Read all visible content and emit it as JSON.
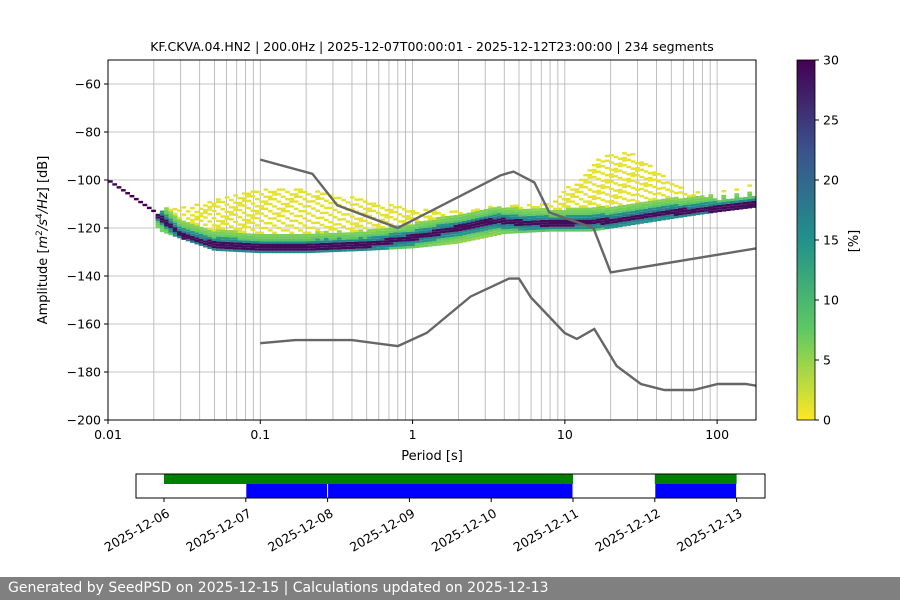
{
  "chart_data": {
    "type": "heatmap",
    "title": "KF.CKVA.04.HN2 | 200.0Hz | 2025-12-07T00:00:01 - 2025-12-12T23:00:00 | 234 segments",
    "xlabel": "Period [s]",
    "ylabel": "Amplitude [m²/s⁴/Hz] [dB]",
    "xscale": "log",
    "xlim": [
      0.01,
      180
    ],
    "ylim": [
      -200,
      -50
    ],
    "x_ticks": [
      0.01,
      0.1,
      1,
      10,
      100
    ],
    "x_tick_labels": [
      "0.01",
      "0.1",
      "1",
      "10",
      "100"
    ],
    "y_ticks": [
      -200,
      -180,
      -160,
      -140,
      -120,
      -100,
      -80,
      -60
    ],
    "y_tick_labels": [
      "−200",
      "−180",
      "−160",
      "−140",
      "−120",
      "−100",
      "−80",
      "−60"
    ],
    "grid": true,
    "colorbar": {
      "label": "[%]",
      "range": [
        0,
        30
      ],
      "ticks": [
        0,
        5,
        10,
        15,
        20,
        25,
        30
      ],
      "colormap": [
        "#fde725",
        "#5ec962",
        "#21918c",
        "#3b528b",
        "#440154"
      ]
    },
    "noise_model_high": {
      "name": "NHNM",
      "color": "#666666",
      "period": [
        0.1,
        0.22,
        0.32,
        0.8,
        3.8,
        4.6,
        6.3,
        7.9,
        15.4,
        20,
        180
      ],
      "db": [
        -91.5,
        -97.4,
        -110.5,
        -120,
        -98,
        -96.5,
        -101,
        -113.5,
        -120,
        -138.5,
        -128.5
      ]
    },
    "noise_model_low": {
      "name": "NLNM",
      "color": "#666666",
      "period": [
        0.1,
        0.17,
        0.4,
        0.8,
        1.24,
        2.4,
        4.3,
        5,
        6,
        10,
        12,
        15.6,
        21.9,
        31.6,
        45,
        70,
        101,
        154,
        180
      ],
      "db": [
        -168,
        -166.7,
        -166.7,
        -169.2,
        -163.7,
        -148.6,
        -141.1,
        -141.1,
        -149,
        -163.8,
        -166.2,
        -162.1,
        -177.5,
        -185,
        -187.5,
        -187.5,
        -185,
        -185,
        -185.7
      ]
    },
    "mode_curve": {
      "period": [
        0.01,
        0.02,
        0.03,
        0.05,
        0.1,
        0.2,
        0.5,
        1,
        2,
        3.5,
        6,
        10,
        20,
        40,
        100,
        180
      ],
      "db": [
        -100,
        -113,
        -123,
        -127,
        -128,
        -128,
        -127,
        -124,
        -120,
        -117,
        -118,
        -118,
        -117,
        -114,
        -112,
        -110
      ]
    },
    "spread_upper": {
      "period": [
        0.02,
        0.05,
        0.1,
        0.2,
        0.5,
        1,
        2,
        4,
        8,
        13,
        16,
        22,
        28,
        40,
        60,
        100,
        180
      ],
      "db": [
        -114,
        -108,
        -104,
        -104,
        -108,
        -112,
        -113,
        -111,
        -109,
        -98,
        -92,
        -88,
        -89,
        -96,
        -104,
        -108,
        -107
      ]
    },
    "spread_lower": {
      "period": [
        0.02,
        0.05,
        0.1,
        0.2,
        0.5,
        1,
        2,
        4,
        8,
        15,
        30,
        60,
        100,
        180
      ],
      "db": [
        -120,
        -129,
        -130,
        -130,
        -129,
        -128,
        -126,
        -122,
        -121,
        -121,
        -118,
        -115,
        -113,
        -111
      ]
    }
  },
  "availability": {
    "date_ticks": [
      "2025-12-06",
      "2025-12-07",
      "2025-12-08",
      "2025-12-09",
      "2025-12-10",
      "2025-12-11",
      "2025-12-12",
      "2025-12-13"
    ],
    "green_spans": [
      [
        "2025-12-06",
        "2025-12-11"
      ],
      [
        "2025-12-12",
        "2025-12-13"
      ]
    ],
    "blue_spans": [
      [
        "2025-12-07",
        "2025-12-08"
      ],
      [
        "2025-12-08",
        "2025-12-11"
      ],
      [
        "2025-12-12",
        "2025-12-13"
      ]
    ],
    "green_color": "#008000",
    "blue_color": "#0000ff"
  },
  "footer": {
    "text": "Generated by SeedPSD on 2025-12-15 | Calculations updated on 2025-12-13"
  }
}
